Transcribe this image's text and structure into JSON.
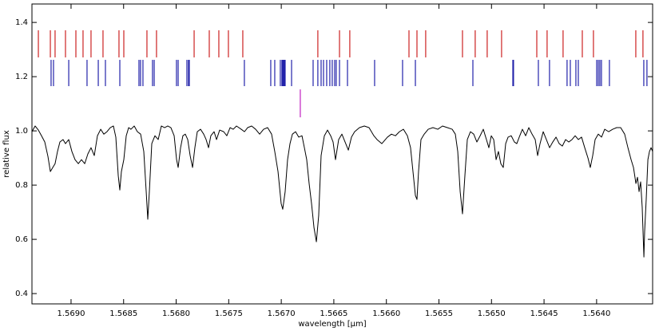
{
  "chart_data": {
    "type": "line",
    "xlabel": "wavelength [μm]",
    "ylabel": "relative flux",
    "xlim": [
      1.569372,
      1.563467
    ],
    "ylim": [
      0.362,
      1.468
    ],
    "xticks": [
      {
        "value": 1.569,
        "label": "1.5690"
      },
      {
        "value": 1.5685,
        "label": "1.5685"
      },
      {
        "value": 1.568,
        "label": "1.5680"
      },
      {
        "value": 1.5675,
        "label": "1.5675"
      },
      {
        "value": 1.567,
        "label": "1.5670"
      },
      {
        "value": 1.5665,
        "label": "1.5665"
      },
      {
        "value": 1.566,
        "label": "1.5660"
      },
      {
        "value": 1.5655,
        "label": "1.5655"
      },
      {
        "value": 1.565,
        "label": "1.5650"
      },
      {
        "value": 1.5645,
        "label": "1.5645"
      },
      {
        "value": 1.564,
        "label": "1.5640"
      }
    ],
    "yticks": [
      0.4,
      0.6,
      0.8,
      {
        "value": 1.0,
        "label": "1.0"
      },
      1.2,
      1.4
    ],
    "series": [
      {
        "color": "#000000",
        "x": [
          1.569372,
          1.569342,
          1.569311,
          1.569281,
          1.56925,
          1.56922,
          1.569197,
          1.569174,
          1.569152,
          1.569129,
          1.569106,
          1.569076,
          1.569053,
          1.569022,
          1.568992,
          1.568962,
          1.568931,
          1.568901,
          1.56887,
          1.56884,
          1.56881,
          1.568779,
          1.568749,
          1.568718,
          1.568688,
          1.568658,
          1.568627,
          1.568597,
          1.568574,
          1.568551,
          1.568536,
          1.568521,
          1.568498,
          1.568475,
          1.568452,
          1.56843,
          1.568399,
          1.568369,
          1.568338,
          1.568308,
          1.568285,
          1.56827,
          1.568255,
          1.568232,
          1.568202,
          1.568171,
          1.568141,
          1.56811,
          1.56808,
          1.56805,
          1.568019,
          1.567996,
          1.567981,
          1.567958,
          1.567936,
          1.567913,
          1.56789,
          1.567867,
          1.567844,
          1.567822,
          1.567799,
          1.567768,
          1.567738,
          1.567715,
          1.567692,
          1.56767,
          1.567639,
          1.567616,
          1.567586,
          1.567548,
          1.567518,
          1.567487,
          1.567457,
          1.567426,
          1.567381,
          1.56735,
          1.56732,
          1.567282,
          1.567244,
          1.567206,
          1.567168,
          1.56713,
          1.567092,
          1.567062,
          1.567031,
          1.567001,
          1.566986,
          1.566963,
          1.56694,
          1.566917,
          1.566894,
          1.566864,
          1.566834,
          1.566803,
          1.56678,
          1.566758,
          1.566735,
          1.566712,
          1.566689,
          1.566666,
          1.566644,
          1.566621,
          1.56659,
          1.56656,
          1.56653,
          1.566507,
          1.566484,
          1.566454,
          1.566423,
          1.566393,
          1.566362,
          1.566332,
          1.566302,
          1.566256,
          1.56621,
          1.566165,
          1.566119,
          1.566089,
          1.566043,
          1.56599,
          1.565952,
          1.565914,
          1.565876,
          1.565838,
          1.5658,
          1.56577,
          1.565747,
          1.565724,
          1.565709,
          1.565694,
          1.565671,
          1.56564,
          1.565602,
          1.565557,
          1.565511,
          1.565466,
          1.56542,
          1.565374,
          1.565344,
          1.565321,
          1.565298,
          1.565276,
          1.565253,
          1.56523,
          1.5652,
          1.565169,
          1.565139,
          1.565108,
          1.565078,
          1.565048,
          1.565025,
          1.565002,
          1.564979,
          1.564956,
          1.564934,
          1.564911,
          1.564888,
          1.564865,
          1.564842,
          1.564812,
          1.564782,
          1.564759,
          1.564736,
          1.564706,
          1.564675,
          1.564645,
          1.564614,
          1.564584,
          1.564561,
          1.564538,
          1.564508,
          1.564478,
          1.564447,
          1.564417,
          1.564386,
          1.564356,
          1.564326,
          1.564295,
          1.564265,
          1.564234,
          1.564204,
          1.564174,
          1.564143,
          1.564113,
          1.564082,
          1.56406,
          1.564037,
          1.564014,
          1.563984,
          1.563953,
          1.563923,
          1.563885,
          1.563847,
          1.563809,
          1.563771,
          1.563733,
          1.563702,
          1.563672,
          1.563649,
          1.563626,
          1.563611,
          1.563596,
          1.563581,
          1.563566,
          1.56355,
          1.563543,
          1.563528,
          1.563512,
          1.563497,
          1.563482,
          1.563467
        ],
        "values": [
          0.997,
          1.018,
          1.003,
          0.982,
          0.959,
          0.906,
          0.85,
          0.865,
          0.879,
          0.924,
          0.959,
          0.968,
          0.953,
          0.968,
          0.924,
          0.894,
          0.879,
          0.894,
          0.879,
          0.915,
          0.938,
          0.909,
          0.982,
          1.006,
          0.988,
          0.997,
          1.012,
          1.018,
          0.977,
          0.835,
          0.782,
          0.85,
          0.894,
          0.982,
          1.012,
          1.006,
          1.018,
          0.997,
          0.988,
          0.924,
          0.776,
          0.674,
          0.776,
          0.953,
          0.982,
          0.968,
          1.018,
          1.012,
          1.018,
          1.012,
          0.982,
          0.894,
          0.865,
          0.938,
          0.982,
          0.988,
          0.968,
          0.909,
          0.865,
          0.938,
          0.997,
          1.006,
          0.988,
          0.968,
          0.938,
          0.982,
          0.997,
          0.968,
          1.003,
          0.997,
          0.982,
          1.012,
          1.006,
          1.018,
          1.006,
          0.997,
          1.012,
          1.018,
          1.006,
          0.988,
          1.006,
          1.012,
          0.988,
          0.924,
          0.85,
          0.732,
          0.711,
          0.776,
          0.894,
          0.953,
          0.988,
          0.997,
          0.977,
          0.982,
          0.938,
          0.894,
          0.806,
          0.732,
          0.644,
          0.591,
          0.688,
          0.909,
          0.982,
          1.003,
          0.982,
          0.959,
          0.894,
          0.968,
          0.988,
          0.959,
          0.929,
          0.977,
          0.997,
          1.012,
          1.018,
          1.012,
          0.982,
          0.968,
          0.953,
          0.977,
          0.988,
          0.982,
          0.997,
          1.006,
          0.982,
          0.938,
          0.85,
          0.762,
          0.747,
          0.85,
          0.968,
          0.988,
          1.006,
          1.012,
          1.006,
          1.018,
          1.012,
          1.006,
          0.988,
          0.924,
          0.776,
          0.694,
          0.835,
          0.968,
          0.997,
          0.988,
          0.959,
          0.982,
          1.006,
          0.968,
          0.938,
          0.982,
          0.968,
          0.894,
          0.924,
          0.879,
          0.865,
          0.953,
          0.977,
          0.982,
          0.959,
          0.953,
          0.977,
          1.006,
          0.982,
          1.012,
          0.988,
          0.968,
          0.909,
          0.953,
          0.997,
          0.968,
          0.938,
          0.959,
          0.977,
          0.953,
          0.944,
          0.968,
          0.959,
          0.968,
          0.982,
          0.968,
          0.977,
          0.938,
          0.9,
          0.865,
          0.909,
          0.968,
          0.988,
          0.977,
          1.006,
          0.997,
          1.006,
          1.012,
          1.012,
          0.988,
          0.938,
          0.894,
          0.865,
          0.806,
          0.829,
          0.776,
          0.812,
          0.718,
          0.535,
          0.629,
          0.747,
          0.894,
          0.924,
          0.938,
          0.924
        ]
      }
    ],
    "line_lists": [
      {
        "color": "#cc2222",
        "ymin": 1.271,
        "ymax": 1.371,
        "x": [
          1.569311,
          1.569197,
          1.569152,
          1.569053,
          1.568954,
          1.568886,
          1.56881,
          1.568696,
          1.568544,
          1.568498,
          1.568278,
          1.568187,
          1.567829,
          1.567685,
          1.567594,
          1.567503,
          1.567366,
          1.566652,
          1.566446,
          1.566348,
          1.565785,
          1.565709,
          1.565626,
          1.565276,
          1.565155,
          1.565041,
          1.564904,
          1.564569,
          1.564471,
          1.564319,
          1.564136,
          1.56403,
          1.563627,
          1.563559
        ]
      },
      {
        "color": "#2222aa",
        "ymin": 1.165,
        "ymax": 1.262,
        "x": [
          1.56919,
          1.569167,
          1.569022,
          1.568848,
          1.568741,
          1.568673,
          1.568536,
          1.568354,
          1.568339,
          1.568316,
          1.568225,
          1.568209,
          1.567997,
          1.567981,
          1.567898,
          1.567883,
          1.567875,
          1.567351,
          1.5671,
          1.567062,
          1.567009,
          1.566994,
          1.566986,
          1.566978,
          1.566971,
          1.566963,
          1.566902,
          1.566697,
          1.566652,
          1.566621,
          1.566598,
          1.566568,
          1.566538,
          1.566515,
          1.566492,
          1.566477,
          1.566446,
          1.56637,
          1.566112,
          1.565846,
          1.565724,
          1.565177,
          1.564797,
          1.56479,
          1.564554,
          1.564448,
          1.564281,
          1.56425,
          1.564197,
          1.564174,
          1.563999,
          1.563984,
          1.563969,
          1.563954,
          1.563878,
          1.563551,
          1.563521
        ]
      },
      {
        "color": "#c020c0",
        "ymin": 1.05,
        "ymax": 1.153,
        "x": [
          1.566819
        ]
      }
    ]
  }
}
